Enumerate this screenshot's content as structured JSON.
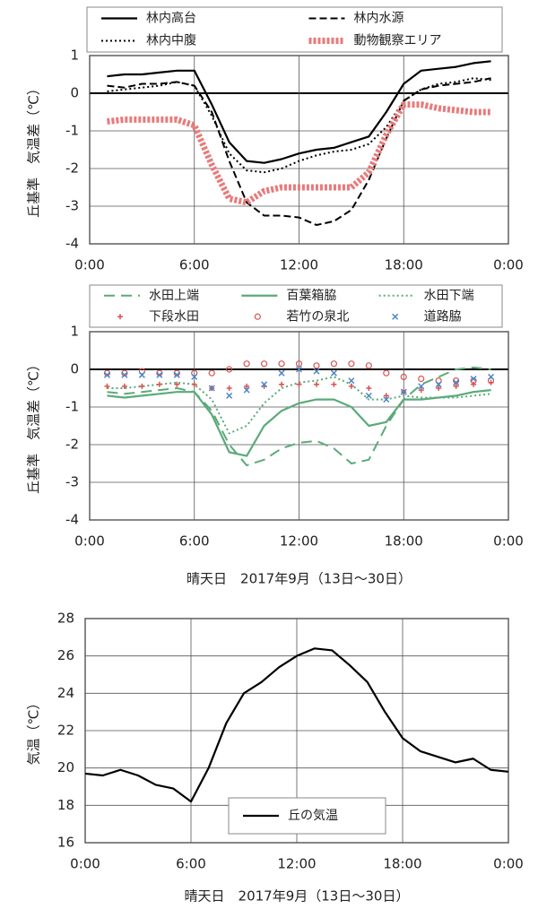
{
  "chart_data": [
    {
      "type": "line",
      "ylabel": "丘基準　気温差（℃）",
      "x": [
        1,
        2,
        3,
        4,
        5,
        6,
        7,
        8,
        9,
        10,
        11,
        12,
        13,
        14,
        15,
        16,
        17,
        18,
        19,
        20,
        21,
        22,
        23
      ],
      "series": [
        {
          "name": "林内高台",
          "color": "#000000",
          "style": "solid",
          "values": [
            0.45,
            0.5,
            0.5,
            0.55,
            0.6,
            0.6,
            -0.3,
            -1.3,
            -1.8,
            -1.85,
            -1.75,
            -1.6,
            -1.5,
            -1.45,
            -1.3,
            -1.15,
            -0.5,
            0.25,
            0.6,
            0.65,
            0.7,
            0.8,
            0.85
          ]
        },
        {
          "name": "林内水源",
          "color": "#000000",
          "style": "dashed",
          "values": [
            0.2,
            0.15,
            0.25,
            0.25,
            0.3,
            0.2,
            -0.5,
            -1.8,
            -2.9,
            -3.25,
            -3.25,
            -3.3,
            -3.5,
            -3.4,
            -3.1,
            -2.3,
            -1.2,
            -0.2,
            0.1,
            0.2,
            0.25,
            0.3,
            0.4
          ]
        },
        {
          "name": "林内中腹",
          "color": "#000000",
          "style": "dotted",
          "values": [
            0.05,
            0.1,
            0.15,
            0.2,
            0.3,
            0.2,
            -0.6,
            -1.6,
            -2.05,
            -2.1,
            -2.0,
            -1.8,
            -1.65,
            -1.55,
            -1.5,
            -1.35,
            -0.9,
            -0.2,
            0.1,
            0.25,
            0.3,
            0.4,
            0.35
          ]
        },
        {
          "name": "動物観察エリア",
          "color": "#e87a7a",
          "style": "thick-dashed",
          "values": [
            -0.75,
            -0.7,
            -0.7,
            -0.7,
            -0.7,
            -0.85,
            -1.9,
            -2.8,
            -2.9,
            -2.6,
            -2.5,
            -2.5,
            -2.5,
            -2.5,
            -2.5,
            -2.1,
            -1.1,
            -0.3,
            -0.3,
            -0.4,
            -0.45,
            -0.5,
            -0.5
          ]
        }
      ],
      "xlim": [
        0,
        24
      ],
      "xticks": [
        {
          "value": 0,
          "label": "0:00"
        },
        {
          "value": 6,
          "label": "6:00"
        },
        {
          "value": 12,
          "label": "12:00"
        },
        {
          "value": 18,
          "label": "18:00"
        },
        {
          "value": 24,
          "label": "0:00"
        }
      ],
      "ylim": [
        -4,
        1
      ],
      "yticks": [
        1,
        0,
        -1,
        -2,
        -3,
        -4
      ],
      "grid": true,
      "zero_line": true,
      "legend": "top"
    },
    {
      "type": "line",
      "ylabel": "丘基準　気温差（℃）",
      "xlabel": "晴天日　2017年9月（13日～30日）",
      "x": [
        1,
        2,
        3,
        4,
        5,
        6,
        7,
        8,
        9,
        10,
        11,
        12,
        13,
        14,
        15,
        16,
        17,
        18,
        19,
        20,
        21,
        22,
        23
      ],
      "series": [
        {
          "name": "水田上端",
          "color": "#5aaa78",
          "style": "long-dashed",
          "values": [
            -0.6,
            -0.65,
            -0.6,
            -0.55,
            -0.5,
            -0.6,
            -1.1,
            -2.0,
            -2.55,
            -2.4,
            -2.1,
            -1.95,
            -1.9,
            -2.1,
            -2.5,
            -2.4,
            -1.5,
            -0.8,
            -0.4,
            -0.2,
            0,
            0.05,
            0
          ]
        },
        {
          "name": "百葉箱脇",
          "color": "#5aaa78",
          "style": "solid",
          "values": [
            -0.7,
            -0.75,
            -0.7,
            -0.65,
            -0.6,
            -0.6,
            -1.2,
            -2.2,
            -2.3,
            -1.5,
            -1.1,
            -0.9,
            -0.8,
            -0.8,
            -1.0,
            -1.5,
            -1.4,
            -0.8,
            -0.8,
            -0.75,
            -0.7,
            -0.6,
            -0.55
          ]
        },
        {
          "name": "水田下端",
          "color": "#5aaa78",
          "style": "dotted",
          "values": [
            -0.5,
            -0.5,
            -0.45,
            -0.4,
            -0.35,
            -0.4,
            -0.8,
            -1.7,
            -1.5,
            -0.9,
            -0.5,
            -0.35,
            -0.3,
            -0.2,
            -0.4,
            -0.8,
            -0.8,
            -0.7,
            -0.75,
            -0.75,
            -0.75,
            -0.7,
            -0.65
          ]
        },
        {
          "name": "下段水田",
          "color": "#d9534f",
          "style": "markers",
          "marker": "plus",
          "values": [
            -0.45,
            -0.45,
            -0.45,
            -0.4,
            -0.4,
            -0.4,
            -0.5,
            -0.5,
            -0.45,
            -0.45,
            -0.4,
            -0.4,
            -0.4,
            -0.4,
            -0.45,
            -0.5,
            -0.7,
            -0.6,
            -0.55,
            -0.5,
            -0.45,
            -0.4,
            -0.35
          ]
        },
        {
          "name": "若竹の泉北",
          "color": "#d9534f",
          "style": "markers",
          "marker": "circle",
          "values": [
            -0.1,
            -0.1,
            -0.05,
            -0.1,
            -0.1,
            -0.1,
            -0.1,
            0,
            0.15,
            0.15,
            0.15,
            0.15,
            0.1,
            0.15,
            0.15,
            0.1,
            -0.1,
            -0.2,
            -0.25,
            -0.3,
            -0.3,
            -0.3,
            -0.3
          ]
        },
        {
          "name": "道路脇",
          "color": "#4a86c8",
          "style": "markers",
          "marker": "x",
          "values": [
            -0.15,
            -0.15,
            -0.15,
            -0.15,
            -0.15,
            -0.2,
            -0.5,
            -0.7,
            -0.55,
            -0.4,
            -0.1,
            0,
            -0.05,
            -0.1,
            -0.3,
            -0.7,
            -0.8,
            -0.6,
            -0.45,
            -0.4,
            -0.35,
            -0.25,
            -0.2
          ]
        }
      ],
      "xlim": [
        0,
        24
      ],
      "xticks": [
        {
          "value": 0,
          "label": "0:00"
        },
        {
          "value": 6,
          "label": "6:00"
        },
        {
          "value": 12,
          "label": "12:00"
        },
        {
          "value": 18,
          "label": "18:00"
        },
        {
          "value": 24,
          "label": "0:00"
        }
      ],
      "ylim": [
        -4,
        1
      ],
      "yticks": [
        1,
        0,
        -1,
        -2,
        -3,
        -4
      ],
      "grid": true,
      "zero_line": true,
      "legend": "top"
    },
    {
      "type": "line",
      "ylabel": "気温（℃）",
      "xlabel": "晴天日　2017年9月（13日～30日）",
      "x": [
        0,
        1,
        2,
        3,
        4,
        5,
        6,
        7,
        8,
        9,
        10,
        11,
        12,
        13,
        14,
        15,
        16,
        17,
        18,
        19,
        20,
        21,
        22,
        23,
        24
      ],
      "series": [
        {
          "name": "丘の気温",
          "color": "#000000",
          "style": "solid",
          "values": [
            19.7,
            19.6,
            19.9,
            19.6,
            19.1,
            18.9,
            18.2,
            20.0,
            22.4,
            24.0,
            24.6,
            25.4,
            26.0,
            26.4,
            26.3,
            25.5,
            24.6,
            23.0,
            21.6,
            20.9,
            20.6,
            20.3,
            20.5,
            19.9,
            19.8
          ]
        }
      ],
      "xlim": [
        0,
        24
      ],
      "xticks": [
        {
          "value": 0,
          "label": "0:00"
        },
        {
          "value": 6,
          "label": "6:00"
        },
        {
          "value": 12,
          "label": "12:00"
        },
        {
          "value": 18,
          "label": "18:00"
        },
        {
          "value": 24,
          "label": "0:00"
        }
      ],
      "ylim": [
        16,
        28
      ],
      "yticks": [
        16,
        18,
        20,
        22,
        24,
        26,
        28
      ],
      "grid": true,
      "zero_line": false,
      "legend": "inside-bottom"
    }
  ]
}
